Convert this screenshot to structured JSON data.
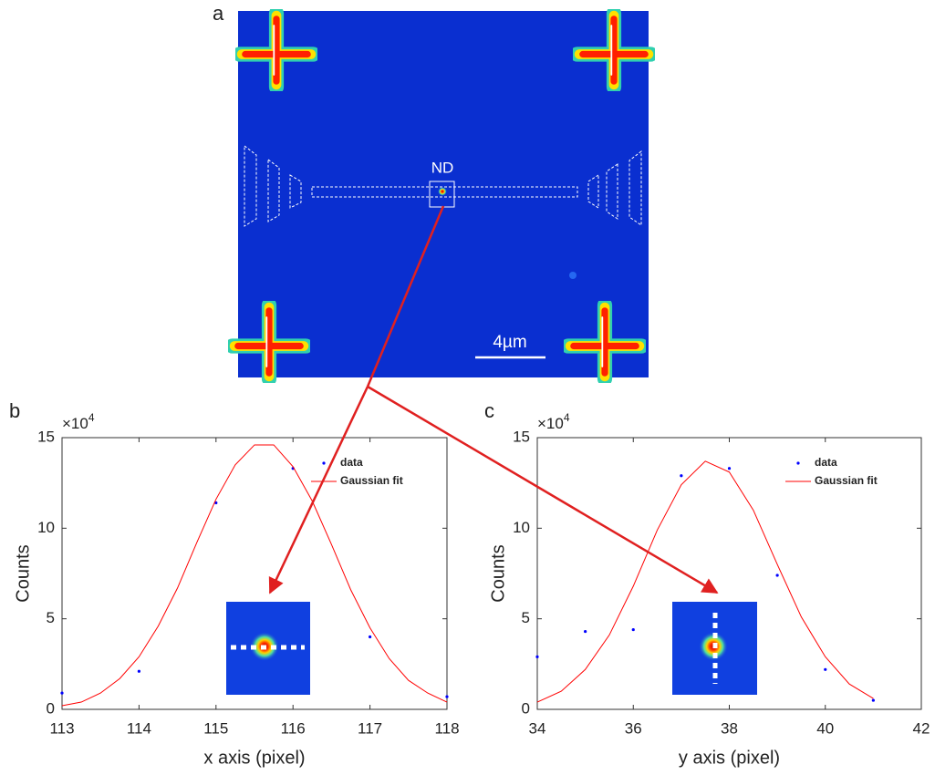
{
  "image_panel": {
    "panel_label": "a",
    "roi_label": "ND",
    "scale_bar": "4µm"
  },
  "chart_data": [
    {
      "type": "line",
      "panel_label": "b",
      "x_label": "x axis (pixel)",
      "y_label": "Counts",
      "y_multiplier": "×10",
      "y_exponent": "4",
      "xlim": [
        113,
        118
      ],
      "xticks": [
        113,
        114,
        115,
        116,
        117,
        118
      ],
      "ylim": [
        0,
        15
      ],
      "yticks": [
        0,
        5,
        10,
        15
      ],
      "legend": "upper right",
      "series": [
        {
          "name": "data",
          "color": "#0000ff",
          "style": "markers",
          "x": [
            113,
            114,
            115,
            116,
            117,
            118
          ],
          "values": [
            0.9,
            2.1,
            11.4,
            13.3,
            4.0,
            0.7
          ]
        },
        {
          "name": "Gaussian fit",
          "color": "#ff0000",
          "style": "line",
          "x": [
            113,
            113.25,
            113.5,
            113.75,
            114,
            114.25,
            114.5,
            114.75,
            115,
            115.25,
            115.5,
            115.75,
            116,
            116.25,
            116.5,
            116.75,
            117,
            117.25,
            117.5,
            117.75,
            118
          ],
          "values": [
            0.2,
            0.4,
            0.9,
            1.7,
            2.9,
            4.6,
            6.7,
            9.2,
            11.6,
            13.5,
            14.6,
            14.6,
            13.4,
            11.5,
            9.1,
            6.6,
            4.5,
            2.8,
            1.6,
            0.9,
            0.4
          ]
        }
      ]
    },
    {
      "type": "line",
      "panel_label": "c",
      "x_label": "y axis (pixel)",
      "y_label": "Counts",
      "y_multiplier": "×10",
      "y_exponent": "4",
      "xlim": [
        34,
        42
      ],
      "xticks": [
        34,
        36,
        38,
        40,
        42
      ],
      "ylim": [
        0,
        15
      ],
      "yticks": [
        0,
        5,
        10,
        15
      ],
      "legend": "upper right",
      "series": [
        {
          "name": "data",
          "color": "#0000ff",
          "style": "markers",
          "x": [
            34,
            35,
            36,
            37,
            38,
            39,
            40,
            41
          ],
          "values": [
            2.9,
            4.3,
            4.4,
            12.9,
            13.3,
            7.4,
            2.2,
            0.5
          ]
        },
        {
          "name": "Gaussian fit",
          "color": "#ff0000",
          "style": "line",
          "x": [
            34,
            34.5,
            35,
            35.5,
            36,
            36.5,
            37,
            37.5,
            38,
            38.5,
            39,
            39.5,
            40,
            40.5,
            41
          ],
          "values": [
            0.4,
            1.0,
            2.2,
            4.1,
            6.8,
            9.9,
            12.4,
            13.7,
            13.1,
            11.0,
            8.0,
            5.1,
            2.9,
            1.4,
            0.6
          ]
        }
      ]
    }
  ]
}
